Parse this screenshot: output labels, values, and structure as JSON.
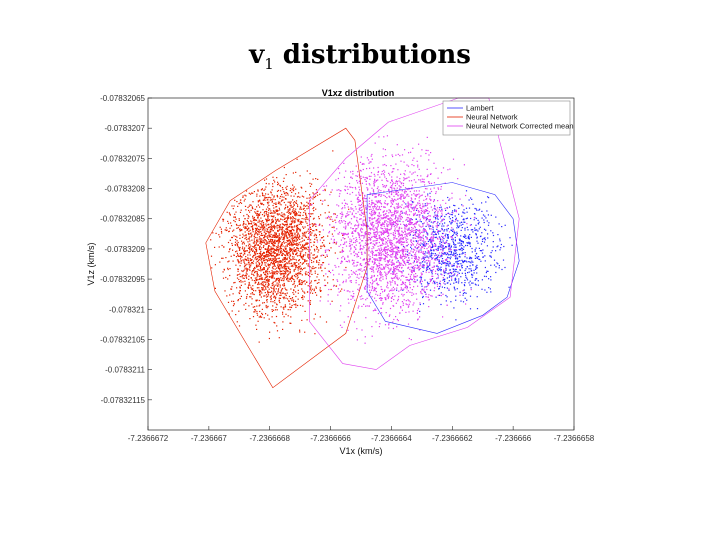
{
  "slide": {
    "title_main": "v",
    "title_sub": "1",
    "title_rest": " distributions"
  },
  "chart_data": {
    "type": "scatter",
    "title": "V1xz distribution",
    "xlabel": "V1x (km/s)",
    "ylabel": "V1z (km/s)",
    "xlim": [
      -7.2366672,
      -7.2366658
    ],
    "ylim": [
      -0.0783212,
      -0.07832065
    ],
    "xticks": [
      "-7.2366672",
      "-7.236667",
      "-7.2366668",
      "-7.2366666",
      "-7.2366664",
      "-7.2366662",
      "-7.236666",
      "-7.2366658"
    ],
    "yticks": [
      "-0.0783207",
      "-0.07832075",
      "-0.0783208",
      "-0.07832085",
      "-0.0783209",
      "-0.07832095",
      "-0.078321",
      "-0.07832105",
      "-0.0783211",
      "-0.07832115",
      "-0.07832065"
    ],
    "ytick_values": [
      -0.0783207,
      -0.07832075,
      -0.0783208,
      -0.07832085,
      -0.0783209,
      -0.07832095,
      -0.078321,
      -0.07832105,
      -0.0783211,
      -0.07832115,
      -0.07832065
    ],
    "grid": false,
    "legend_position": "top-right",
    "series": [
      {
        "name": "Lambert",
        "color": "#2a2aff",
        "marker": "dot",
        "cloud": {
          "x_range": [
            -7.23666645,
            -7.23666598
          ],
          "y_range": [
            -0.07832105,
            -0.0783208
          ],
          "center": [
            -7.2366662,
            -0.0783209
          ]
        },
        "hull": [
          [
            -7.23666648,
            -0.07832081
          ],
          [
            -7.2366662,
            -0.07832079
          ],
          [
            -7.23666606,
            -0.07832081
          ],
          [
            -7.236666,
            -0.07832085
          ],
          [
            -7.23666598,
            -0.07832092
          ],
          [
            -7.23666602,
            -0.07832098
          ],
          [
            -7.2366661,
            -0.07832101
          ],
          [
            -7.23666625,
            -0.07832104
          ],
          [
            -7.23666642,
            -0.07832102
          ],
          [
            -7.23666648,
            -0.07832097
          ]
        ]
      },
      {
        "name": "Neural Network",
        "color": "#e52200",
        "marker": "dot",
        "cloud": {
          "x_range": [
            -7.236667,
            -7.2366665
          ],
          "y_range": [
            -0.07832112,
            -0.07832078
          ],
          "center": [
            -7.23666678,
            -0.0783209
          ]
        },
        "hull": [
          [
            -7.23666678,
            -0.07832077
          ],
          [
            -7.23666655,
            -0.0783207
          ],
          [
            -7.23666652,
            -0.07832072
          ],
          [
            -7.23666648,
            -0.07832087
          ],
          [
            -7.23666648,
            -0.07832093
          ],
          [
            -7.23666655,
            -0.07832104
          ],
          [
            -7.23666663,
            -0.07832107
          ],
          [
            -7.23666679,
            -0.07832113
          ],
          [
            -7.23666698,
            -0.07832097
          ],
          [
            -7.23666701,
            -0.07832089
          ],
          [
            -7.23666693,
            -0.07832082
          ]
        ]
      },
      {
        "name": "Neural Network Corrected mean",
        "color": "#e040f0",
        "marker": "dot",
        "cloud": {
          "x_range": [
            -7.2366667,
            -7.2366661
          ],
          "y_range": [
            -0.0783211,
            -0.07832071
          ],
          "center": [
            -7.2366664,
            -0.07832088
          ]
        },
        "hull": [
          [
            -7.23666641,
            -0.07832069
          ],
          [
            -7.23666618,
            -0.07832065
          ],
          [
            -7.23666608,
            -0.07832065
          ],
          [
            -7.23666598,
            -0.07832085
          ],
          [
            -7.23666601,
            -0.07832098
          ],
          [
            -7.23666615,
            -0.07832103
          ],
          [
            -7.23666634,
            -0.07832106
          ],
          [
            -7.23666645,
            -0.0783211
          ],
          [
            -7.23666656,
            -0.07832109
          ],
          [
            -7.23666667,
            -0.07832102
          ],
          [
            -7.23666667,
            -0.07832082
          ],
          [
            -7.23666655,
            -0.07832075
          ]
        ]
      }
    ]
  }
}
